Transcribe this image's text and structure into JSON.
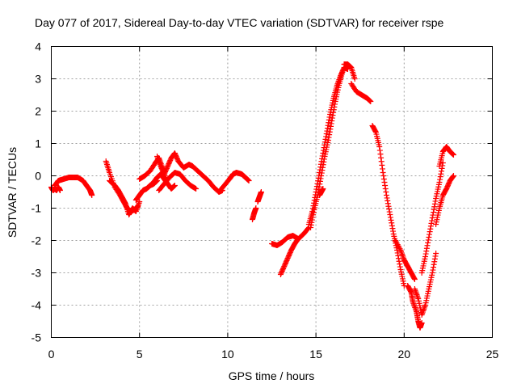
{
  "chart_data": {
    "type": "scatter",
    "title": "Day 077 of 2017, Sidereal Day-to-day VTEC variation (SDTVAR) for receiver rspe",
    "xlabel": "GPS time / hours",
    "ylabel": "SDTVAR / TECUs",
    "xlim": [
      0,
      25
    ],
    "ylim": [
      -5,
      4
    ],
    "xticks": [
      0,
      5,
      10,
      15,
      20,
      25
    ],
    "xtick_labels": [
      "0",
      "5",
      "10",
      "15",
      "20",
      "25"
    ],
    "yticks": [
      -5,
      -4,
      -3,
      -2,
      -1,
      0,
      1,
      2,
      3,
      4
    ],
    "ytick_labels": [
      "-5",
      "-4",
      "-3",
      "-2",
      "-1",
      "0",
      "1",
      "2",
      "3",
      "4"
    ],
    "grid": true,
    "marker": "plus",
    "color": "#ff0000",
    "series": [
      {
        "name": "a1",
        "x": [
          0.0,
          0.1,
          0.2,
          0.3,
          0.4,
          0.5
        ],
        "y": [
          -0.35,
          -0.45,
          -0.4,
          -0.45,
          -0.35,
          -0.45
        ]
      },
      {
        "name": "a2",
        "x": [
          0.2,
          0.4,
          0.7,
          1.0,
          1.2,
          1.5,
          1.8,
          2.0,
          2.2,
          2.3
        ],
        "y": [
          -0.3,
          -0.15,
          -0.1,
          -0.05,
          -0.05,
          -0.05,
          -0.15,
          -0.3,
          -0.45,
          -0.6
        ]
      },
      {
        "name": "b1",
        "x": [
          3.1,
          3.3,
          3.6,
          3.9,
          4.1,
          4.3,
          4.5,
          4.7,
          4.9
        ],
        "y": [
          0.45,
          0.1,
          -0.35,
          -0.6,
          -0.8,
          -1.0,
          -1.1,
          -1.05,
          -0.95
        ]
      },
      {
        "name": "b2",
        "x": [
          3.3,
          3.6,
          3.8,
          4.0,
          4.2,
          4.4,
          4.6,
          4.8,
          5.0
        ],
        "y": [
          -0.15,
          -0.3,
          -0.45,
          -0.65,
          -0.85,
          -1.2,
          -1.0,
          -1.1,
          -0.8
        ]
      },
      {
        "name": "c1",
        "x": [
          4.8,
          5.0,
          5.2,
          5.4,
          5.6,
          5.8,
          6.0
        ],
        "y": [
          -0.75,
          -0.6,
          -0.45,
          -0.4,
          -0.3,
          -0.25,
          -0.15
        ]
      },
      {
        "name": "c2",
        "x": [
          5.0,
          5.3,
          5.6,
          5.9,
          6.1,
          6.3,
          6.5
        ],
        "y": [
          -0.1,
          0.0,
          0.15,
          0.4,
          0.55,
          0.25,
          -0.1
        ]
      },
      {
        "name": "c3",
        "x": [
          5.5,
          5.8,
          6.0,
          6.2,
          6.4,
          6.6,
          6.8,
          7.0
        ],
        "y": [
          -0.35,
          -0.2,
          -0.05,
          0.05,
          -0.1,
          -0.25,
          -0.4,
          -0.3
        ]
      },
      {
        "name": "c4",
        "x": [
          6.0,
          6.2,
          6.4,
          6.6,
          6.8,
          7.0,
          7.2,
          7.5,
          7.8,
          8.0
        ],
        "y": [
          0.6,
          0.3,
          0.05,
          0.3,
          0.55,
          0.7,
          0.45,
          0.25,
          0.35,
          0.3
        ]
      },
      {
        "name": "c5",
        "x": [
          6.1,
          6.4,
          6.7,
          7.0,
          7.3,
          7.6,
          7.9,
          8.2
        ],
        "y": [
          -0.45,
          -0.25,
          -0.05,
          0.1,
          0.05,
          -0.15,
          -0.3,
          -0.4
        ]
      },
      {
        "name": "c6",
        "x": [
          8.0,
          8.3,
          8.6,
          8.9,
          9.2,
          9.5,
          9.7
        ],
        "y": [
          0.3,
          0.15,
          0.0,
          -0.15,
          -0.35,
          -0.5,
          -0.45
        ]
      },
      {
        "name": "c7",
        "x": [
          9.5,
          9.8,
          10.1,
          10.3,
          10.5,
          10.8,
          11.0,
          11.2
        ],
        "y": [
          -0.5,
          -0.3,
          -0.1,
          0.05,
          0.1,
          0.05,
          -0.05,
          -0.15
        ]
      },
      {
        "name": "d1",
        "x": [
          11.4,
          11.5,
          11.6
        ],
        "y": [
          -1.35,
          -1.15,
          -1.0
        ]
      },
      {
        "name": "d2",
        "x": [
          11.7,
          11.8,
          11.9
        ],
        "y": [
          -0.8,
          -0.65,
          -0.5
        ]
      },
      {
        "name": "e1",
        "x": [
          12.5,
          12.8,
          13.1,
          13.4,
          13.7,
          14.0,
          14.3,
          14.6
        ],
        "y": [
          -2.1,
          -2.15,
          -2.05,
          -1.9,
          -1.85,
          -1.95,
          -1.8,
          -1.6
        ]
      },
      {
        "name": "e2",
        "x": [
          13.0,
          13.2,
          13.4,
          13.6,
          13.8,
          14.0
        ],
        "y": [
          -3.05,
          -2.8,
          -2.55,
          -2.3,
          -2.1,
          -1.95
        ]
      },
      {
        "name": "e3",
        "x": [
          14.6,
          14.8,
          15.0,
          15.2,
          15.4,
          15.6,
          15.8,
          16.0,
          16.2,
          16.4,
          16.6,
          16.8
        ],
        "y": [
          -1.5,
          -1.1,
          -0.5,
          0.1,
          0.7,
          1.3,
          1.9,
          2.4,
          2.8,
          3.1,
          3.35,
          3.3
        ]
      },
      {
        "name": "e4",
        "x": [
          14.7,
          14.9,
          15.1,
          15.3,
          15.5,
          15.7,
          15.9,
          16.1,
          16.3,
          16.5
        ],
        "y": [
          -1.6,
          -1.05,
          -0.6,
          0.0,
          0.6,
          1.1,
          1.7,
          2.3,
          2.8,
          3.2
        ]
      },
      {
        "name": "e5",
        "x": [
          15.2,
          15.3,
          15.4
        ],
        "y": [
          -0.6,
          -0.5,
          -0.4
        ]
      },
      {
        "name": "e6",
        "x": [
          16.6,
          16.8,
          17.0,
          17.2
        ],
        "y": [
          3.45,
          3.45,
          3.35,
          3.0
        ]
      },
      {
        "name": "e7",
        "x": [
          17.0,
          17.3,
          17.6,
          17.9,
          18.1
        ],
        "y": [
          2.85,
          2.6,
          2.5,
          2.4,
          2.3
        ]
      },
      {
        "name": "f1",
        "x": [
          18.2,
          18.4,
          18.6,
          18.8,
          19.0,
          19.2,
          19.4,
          19.6,
          19.8,
          20.0
        ],
        "y": [
          1.55,
          1.35,
          0.9,
          0.1,
          -0.6,
          -1.2,
          -1.8,
          -2.3,
          -2.9,
          -3.4
        ]
      },
      {
        "name": "f2",
        "x": [
          19.5,
          19.8,
          20.0,
          20.2,
          20.4,
          20.6
        ],
        "y": [
          -2.0,
          -2.3,
          -2.6,
          -2.8,
          -3.0,
          -3.2
        ]
      },
      {
        "name": "f3",
        "x": [
          20.2,
          20.4,
          20.5,
          20.7,
          20.8,
          20.9,
          21.0
        ],
        "y": [
          -3.4,
          -3.6,
          -3.9,
          -4.2,
          -4.5,
          -4.7,
          -4.55
        ]
      },
      {
        "name": "f4",
        "x": [
          20.6,
          20.8,
          21.0,
          21.2,
          21.4,
          21.6,
          21.8
        ],
        "y": [
          -3.5,
          -3.8,
          -4.3,
          -4.0,
          -3.5,
          -3.0,
          -2.4
        ]
      },
      {
        "name": "f5",
        "x": [
          21.0,
          21.2,
          21.4,
          21.6,
          21.8,
          22.0,
          22.2
        ],
        "y": [
          -3.0,
          -2.5,
          -1.9,
          -1.3,
          -0.7,
          -0.2,
          0.4
        ]
      },
      {
        "name": "f6",
        "x": [
          22.0,
          22.2,
          22.4,
          22.6,
          22.8
        ],
        "y": [
          0.3,
          0.75,
          0.9,
          0.75,
          0.65
        ]
      },
      {
        "name": "f7",
        "x": [
          21.8,
          22.0,
          22.2,
          22.4,
          22.6,
          22.8
        ],
        "y": [
          -1.5,
          -1.0,
          -0.6,
          -0.4,
          -0.15,
          0.0
        ]
      }
    ]
  }
}
